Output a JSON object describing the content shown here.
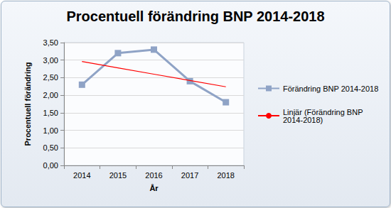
{
  "chart_data": {
    "type": "line",
    "title": "Procentuell förändring BNP 2014-2018",
    "x_label": "År",
    "y_label": "Procentuell förändring",
    "categories": [
      "2014",
      "2015",
      "2016",
      "2017",
      "2018"
    ],
    "series": [
      {
        "name": "Förändring BNP 2014-2018",
        "color": "#8fa3c6",
        "marker": "square",
        "line_style": "solid",
        "values": [
          2.3,
          3.2,
          3.3,
          2.4,
          1.8
        ]
      },
      {
        "name": "Linjär (Förändring BNP 2014-2018)",
        "color": "#ff0000",
        "marker": "none",
        "line_style": "solid",
        "values": [
          2.96,
          2.78,
          2.6,
          2.42,
          2.24
        ]
      }
    ],
    "ylim": [
      0,
      3.5
    ],
    "yticks": [
      {
        "value": 0,
        "label": "0,00"
      },
      {
        "value": 0.5,
        "label": "0,50"
      },
      {
        "value": 1,
        "label": "1,00"
      },
      {
        "value": 1.5,
        "label": "1,50"
      },
      {
        "value": 2,
        "label": "2,00"
      },
      {
        "value": 2.5,
        "label": "2,50"
      },
      {
        "value": 3,
        "label": "3,00"
      },
      {
        "value": 3.5,
        "label": "3,50"
      }
    ],
    "grid": true,
    "legend": "right"
  }
}
